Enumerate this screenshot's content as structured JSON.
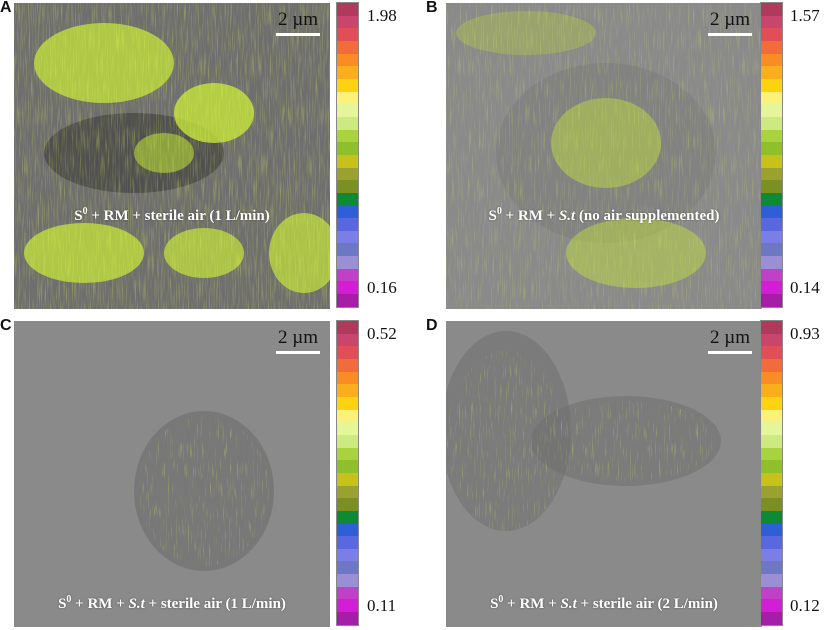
{
  "panels": [
    {
      "letter": "A",
      "scale": "2 µm",
      "caption_pre": "S",
      "caption_sup": "0",
      "caption_post": " + RM + sterile air (1 L/min)",
      "caption_em": "",
      "caption_tail": "",
      "max": "1.98",
      "min": "0.16"
    },
    {
      "letter": "B",
      "scale": "2 µm",
      "caption_pre": "S",
      "caption_sup": "0",
      "caption_post": " + RM + ",
      "caption_em": "S.t",
      "caption_tail": " (no air supplemented)",
      "max": "1.57",
      "min": "0.14"
    },
    {
      "letter": "C",
      "scale": "2 µm",
      "caption_pre": "S",
      "caption_sup": "0",
      "caption_post": " + RM + ",
      "caption_em": "S.t",
      "caption_tail": " + sterile air (1 L/min)",
      "max": "0.52",
      "min": "0.11"
    },
    {
      "letter": "D",
      "scale": "2 µm",
      "caption_pre": "S",
      "caption_sup": "0",
      "caption_post": " + RM + ",
      "caption_em": "S.t",
      "caption_tail": " + sterile air (2 L/min)",
      "max": "0.93",
      "min": "0.12"
    }
  ],
  "colorbar_colors": [
    "#b03a5b",
    "#c9456d",
    "#e24e55",
    "#f26b3a",
    "#fa8c25",
    "#fbae1c",
    "#fdd211",
    "#fcf27a",
    "#e4f59a",
    "#cfe982",
    "#a8d23e",
    "#8fbf2a",
    "#c7c21a",
    "#9aa12e",
    "#7c8f22",
    "#0e8a37",
    "#2e5fd6",
    "#5a68e0",
    "#7c7ee8",
    "#6d78c4",
    "#9a8fd4",
    "#c040c8",
    "#d41ed6",
    "#a61ea8"
  ],
  "style": {
    "background_gray": "#8a8a8a",
    "speckle": "#d9f21c"
  }
}
